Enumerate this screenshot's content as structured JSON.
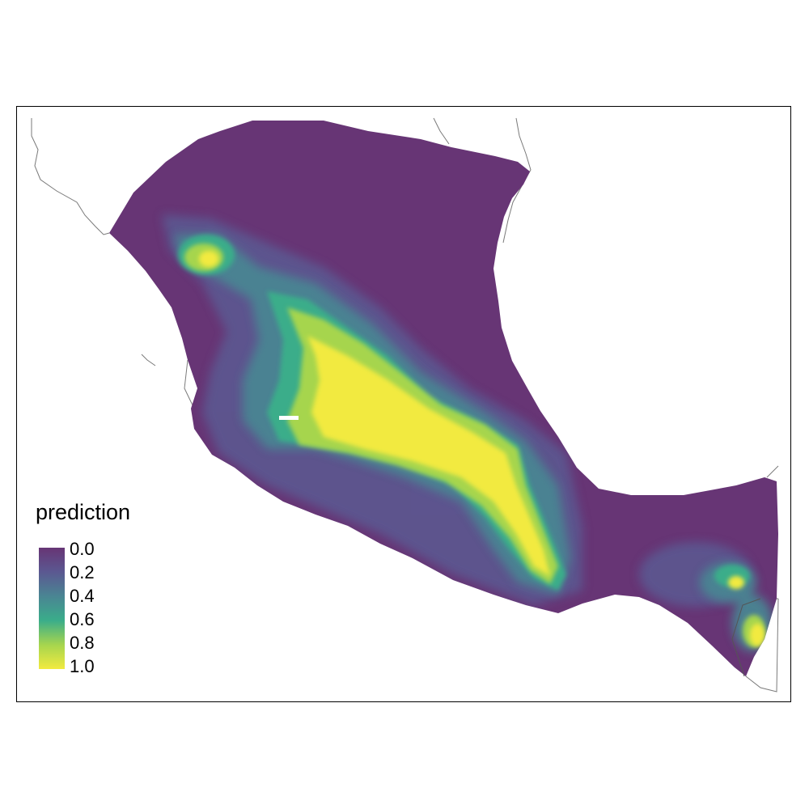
{
  "map": {
    "legend": {
      "title": "prediction",
      "ticks": [
        "0.0",
        "0.2",
        "0.4",
        "0.6",
        "0.8",
        "1.0"
      ],
      "tick_values": [
        0.0,
        0.2,
        0.4,
        0.6,
        0.8,
        1.0
      ]
    },
    "colors": {
      "v0": "#673575",
      "v02": "#5b5891",
      "v04": "#4a8593",
      "v06": "#3aad8a",
      "v08": "#a6d54e",
      "v10": "#f2ea40",
      "coast": "#7a7a7a"
    },
    "color_scale": "viridis"
  }
}
